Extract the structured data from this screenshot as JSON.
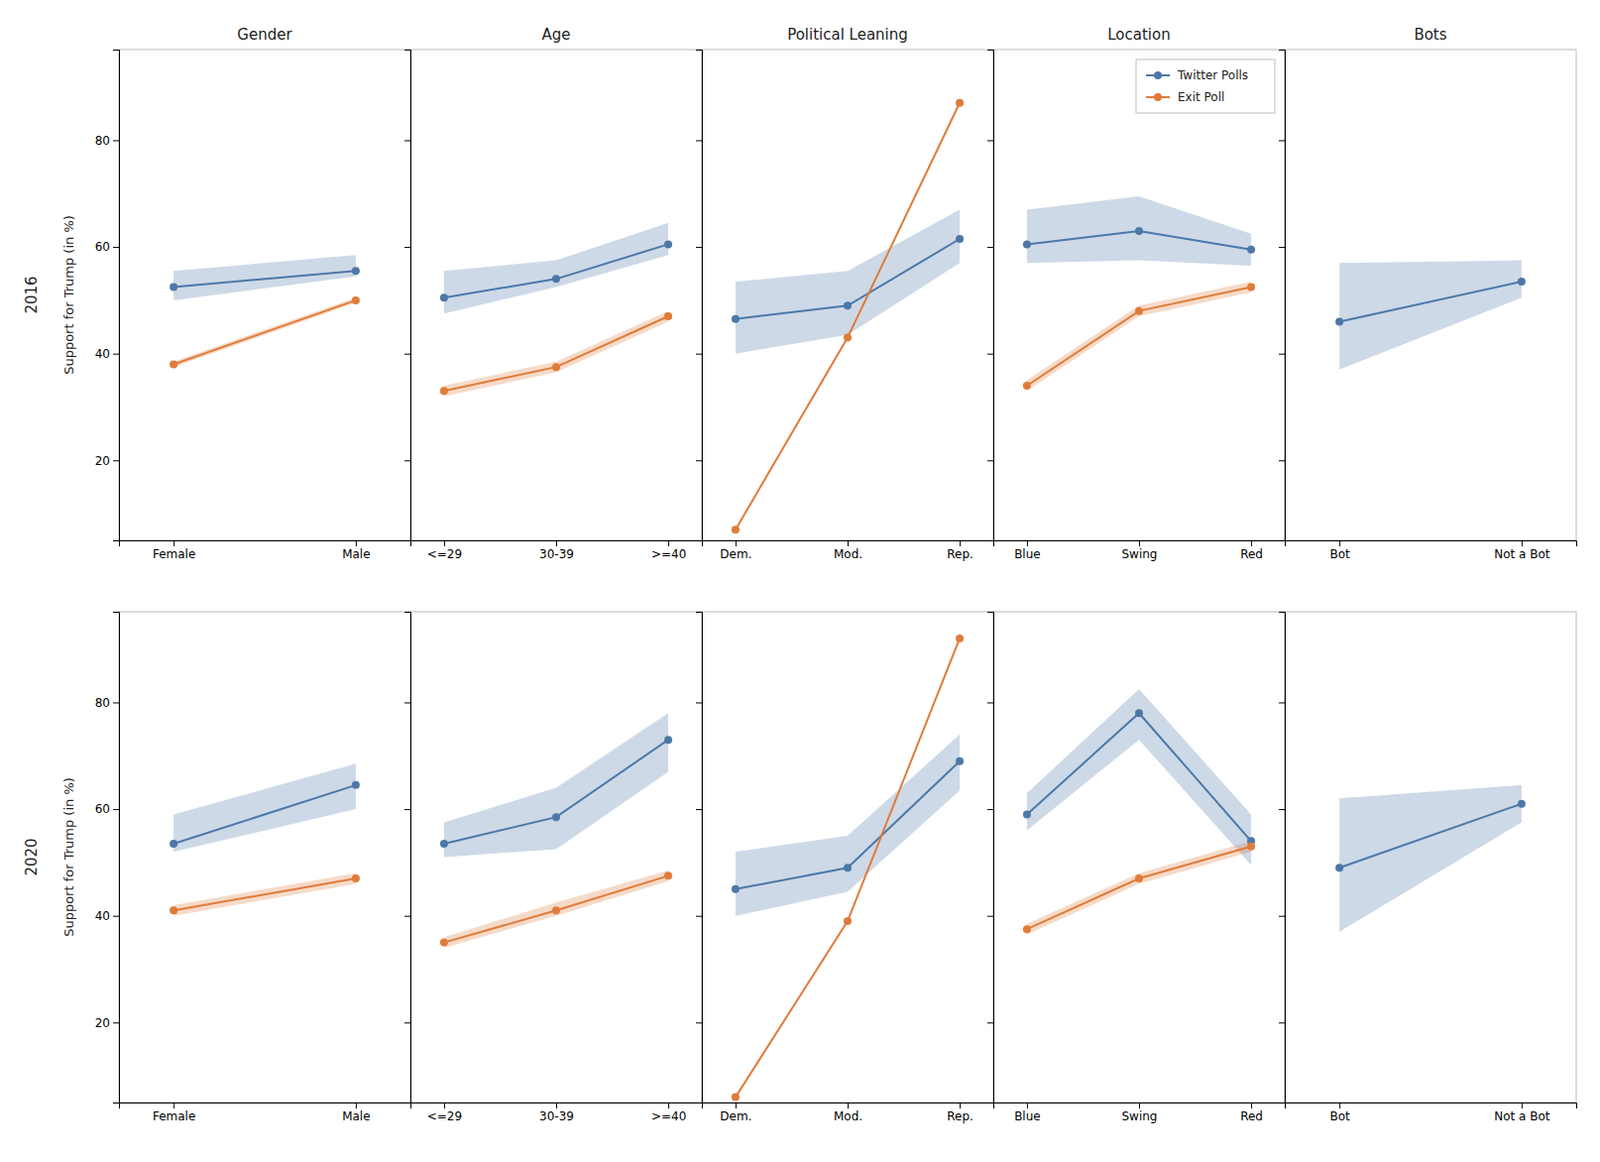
{
  "chart_data": [
    {
      "type": "line",
      "title": "Gender",
      "ylabel": "Support for Trump (in %)",
      "annotations": [
        {
          "text": "2016"
        }
      ],
      "categories": [
        "Female",
        "Male"
      ],
      "series": [
        {
          "name": "Twitter Polls",
          "color": "#4c78a8",
          "marker": "circle",
          "values": [
            52.5,
            55.5
          ],
          "lo": [
            50.0,
            54.5
          ],
          "hi": [
            55.5,
            58.5
          ]
        },
        {
          "name": "Exit Poll",
          "color": "#e07b39",
          "marker": "circle",
          "values": [
            38.0,
            50.0
          ],
          "lo": [
            37.5,
            49.5
          ],
          "hi": [
            38.5,
            50.5
          ]
        }
      ],
      "ylim": [
        5,
        97
      ],
      "yticks": [
        20,
        40,
        60,
        80
      ],
      "grid": false
    },
    {
      "type": "line",
      "title": "Age",
      "categories": [
        "<=29",
        "30-39",
        ">=40"
      ],
      "series": [
        {
          "name": "Twitter Polls",
          "color": "#4c78a8",
          "marker": "circle",
          "values": [
            50.5,
            54.0,
            60.5
          ],
          "lo": [
            47.5,
            52.5,
            58.5
          ],
          "hi": [
            55.5,
            57.5,
            64.5
          ]
        },
        {
          "name": "Exit Poll",
          "color": "#e07b39",
          "marker": "circle",
          "values": [
            33.0,
            37.5,
            47.0
          ],
          "lo": [
            32.0,
            36.5,
            46.0
          ],
          "hi": [
            34.0,
            38.5,
            48.0
          ]
        }
      ],
      "ylim": [
        5,
        97
      ],
      "yticks": [
        20,
        40,
        60,
        80
      ],
      "grid": false,
      "tick_labels": "x"
    },
    {
      "type": "line",
      "title": "Political Leaning",
      "categories": [
        "Dem.",
        "Mod.",
        "Rep."
      ],
      "series": [
        {
          "name": "Twitter Polls",
          "color": "#4c78a8",
          "marker": "circle",
          "values": [
            46.5,
            49.0,
            61.5
          ],
          "lo": [
            40.0,
            43.5,
            57.0
          ],
          "hi": [
            53.5,
            55.5,
            67.0
          ]
        },
        {
          "name": "Exit Poll",
          "color": "#e07b39",
          "marker": "circle",
          "values": [
            7.0,
            43.0,
            87.0
          ]
        }
      ],
      "ylim": [
        5,
        97
      ],
      "yticks": [
        20,
        40,
        60,
        80
      ],
      "grid": false,
      "tick_labels": "x"
    },
    {
      "type": "line",
      "title": "Location",
      "legend": "upper right",
      "categories": [
        "Blue",
        "Swing",
        "Red"
      ],
      "series": [
        {
          "name": "Twitter Polls",
          "color": "#4c78a8",
          "marker": "circle",
          "values": [
            60.5,
            63.0,
            59.5
          ],
          "lo": [
            57.0,
            57.5,
            56.5
          ],
          "hi": [
            67.0,
            69.5,
            62.5
          ]
        },
        {
          "name": "Exit Poll",
          "color": "#e07b39",
          "marker": "circle",
          "values": [
            34.0,
            48.0,
            52.5
          ],
          "lo": [
            33.0,
            47.0,
            51.5
          ],
          "hi": [
            35.0,
            49.0,
            53.5
          ]
        }
      ],
      "ylim": [
        5,
        97
      ],
      "yticks": [
        20,
        40,
        60,
        80
      ],
      "grid": false,
      "tick_labels": "x"
    },
    {
      "type": "line",
      "title": "Bots",
      "categories": [
        "Bot",
        "Not a Bot"
      ],
      "series": [
        {
          "name": "Twitter Polls",
          "color": "#4c78a8",
          "marker": "circle",
          "values": [
            46.0,
            53.5
          ],
          "lo": [
            37.0,
            50.5
          ],
          "hi": [
            57.0,
            57.5
          ]
        }
      ],
      "ylim": [
        5,
        97
      ],
      "yticks": [
        20,
        40,
        60,
        80
      ],
      "grid": false,
      "tick_labels": "x"
    },
    {
      "type": "line",
      "ylabel": "Support for Trump (in %)",
      "annotations": [
        {
          "text": "2020"
        }
      ],
      "categories": [
        "Female",
        "Male"
      ],
      "series": [
        {
          "name": "Twitter Polls",
          "color": "#4c78a8",
          "marker": "circle",
          "values": [
            53.5,
            64.5
          ],
          "lo": [
            52.0,
            60.0
          ],
          "hi": [
            59.0,
            68.5
          ]
        },
        {
          "name": "Exit Poll",
          "color": "#e07b39",
          "marker": "circle",
          "values": [
            41.0,
            47.0
          ],
          "lo": [
            40.0,
            46.0
          ],
          "hi": [
            42.0,
            48.0
          ]
        }
      ],
      "ylim": [
        5,
        97
      ],
      "yticks": [
        20,
        40,
        60,
        80
      ],
      "grid": false
    },
    {
      "type": "line",
      "categories": [
        "<=29",
        "30-39",
        ">=40"
      ],
      "series": [
        {
          "name": "Twitter Polls",
          "color": "#4c78a8",
          "marker": "circle",
          "values": [
            53.5,
            58.5,
            73.0
          ],
          "lo": [
            51.0,
            52.5,
            67.0
          ],
          "hi": [
            57.5,
            64.0,
            78.0
          ]
        },
        {
          "name": "Exit Poll",
          "color": "#e07b39",
          "marker": "circle",
          "values": [
            35.0,
            41.0,
            47.5
          ],
          "lo": [
            34.0,
            40.0,
            46.5
          ],
          "hi": [
            36.0,
            42.5,
            48.5
          ]
        }
      ],
      "ylim": [
        5,
        97
      ],
      "yticks": [
        20,
        40,
        60,
        80
      ],
      "grid": false,
      "tick_labels": "x"
    },
    {
      "type": "line",
      "categories": [
        "Dem.",
        "Mod.",
        "Rep."
      ],
      "series": [
        {
          "name": "Twitter Polls",
          "color": "#4c78a8",
          "marker": "circle",
          "values": [
            45.0,
            49.0,
            69.0
          ],
          "lo": [
            40.0,
            44.5,
            63.5
          ],
          "hi": [
            52.0,
            55.0,
            74.0
          ]
        },
        {
          "name": "Exit Poll",
          "color": "#e07b39",
          "marker": "circle",
          "values": [
            6.0,
            39.0,
            92.0
          ]
        }
      ],
      "ylim": [
        5,
        97
      ],
      "yticks": [
        20,
        40,
        60,
        80
      ],
      "grid": false,
      "tick_labels": "x"
    },
    {
      "type": "line",
      "categories": [
        "Blue",
        "Swing",
        "Red"
      ],
      "series": [
        {
          "name": "Twitter Polls",
          "color": "#4c78a8",
          "marker": "circle",
          "values": [
            59.0,
            78.0,
            54.0
          ],
          "lo": [
            56.0,
            73.0,
            49.5
          ],
          "hi": [
            63.0,
            82.5,
            59.0
          ]
        },
        {
          "name": "Exit Poll",
          "color": "#e07b39",
          "marker": "circle",
          "values": [
            37.5,
            47.0,
            53.0
          ],
          "lo": [
            36.5,
            46.0,
            52.0
          ],
          "hi": [
            38.5,
            48.0,
            54.0
          ]
        }
      ],
      "ylim": [
        5,
        97
      ],
      "yticks": [
        20,
        40,
        60,
        80
      ],
      "grid": false,
      "tick_labels": "x"
    },
    {
      "type": "line",
      "categories": [
        "Bot",
        "Not a Bot"
      ],
      "series": [
        {
          "name": "Twitter Polls",
          "color": "#4c78a8",
          "marker": "circle",
          "values": [
            49.0,
            61.0
          ],
          "lo": [
            37.0,
            57.5
          ],
          "hi": [
            62.0,
            64.5
          ]
        }
      ],
      "ylim": [
        5,
        97
      ],
      "yticks": [
        20,
        40,
        60,
        80
      ],
      "grid": false,
      "tick_labels": "x"
    }
  ]
}
